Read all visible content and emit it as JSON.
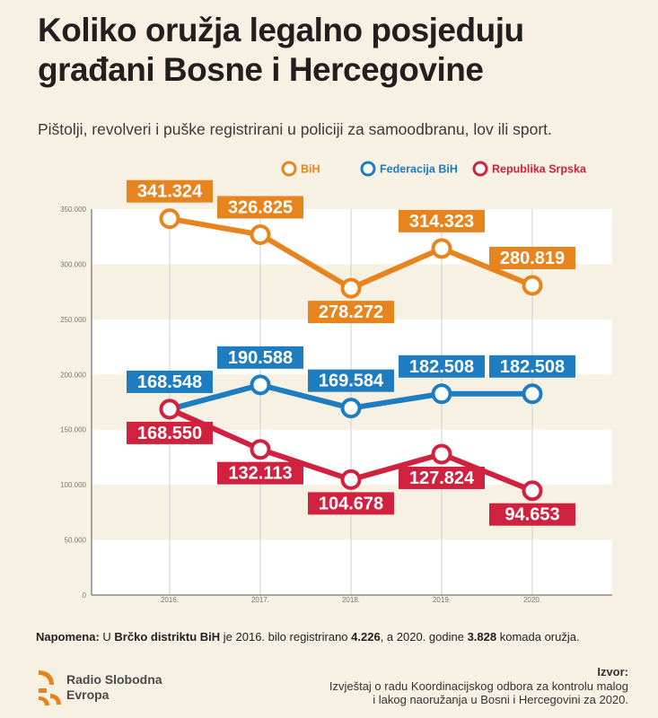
{
  "title_line1": "Koliko oružja legalno posjeduju",
  "title_line2": "građani Bosne i Hercegovine",
  "subtitle": "Pištolji, revolveri i puške registrirani u policiji za samoodbranu, lov ili sport.",
  "colors": {
    "background": "#f6f1e2",
    "band": "#ffffff",
    "bih": "#e8841e",
    "federacija": "#1e7dc1",
    "republika_srpska": "#d0223f"
  },
  "note": {
    "label": "Napomena:",
    "text1": " U ",
    "bold1": "Brčko distriktu BiH",
    "text2": " je 2016. bilo registrirano ",
    "bold2": "4.226",
    "text3": ", a 2020. godine ",
    "bold3": "3.828",
    "text4": " komada oružja."
  },
  "logo": {
    "line1": "Radio Slobodna",
    "line2": "Evropa"
  },
  "source": {
    "label": "Izvor:",
    "line1": "Izvještaj o radu Koordinacijskog odbora za kontrolu malog",
    "line2": "i lakog naoružanja u Bosni i Hercegovini za 2020."
  },
  "chart_data": {
    "type": "line",
    "x": [
      "2016.",
      "2017.",
      "2018.",
      "2019.",
      "2020."
    ],
    "ylim": [
      0,
      350000
    ],
    "yticks": [
      0,
      50000,
      100000,
      150000,
      200000,
      250000,
      300000,
      350000
    ],
    "ytick_labels": [
      "0",
      "50.000",
      "100.000",
      "150.000",
      "200.000",
      "250.000",
      "300.000",
      "350.000"
    ],
    "legend_position": "top-right",
    "series": [
      {
        "name": "BiH",
        "color": "#e8841e",
        "values": [
          341324,
          326825,
          278272,
          314323,
          280819
        ],
        "labels": [
          "341.324",
          "326.825",
          "278.272",
          "314.323",
          "280.819"
        ],
        "label_pos": [
          "above",
          "above",
          "below",
          "above",
          "above"
        ]
      },
      {
        "name": "Federacija BiH",
        "color": "#1e7dc1",
        "values": [
          168548,
          190588,
          169584,
          182508,
          182508
        ],
        "labels": [
          "168.548",
          "190.588",
          "169.584",
          "182.508",
          "182.508"
        ],
        "label_pos": [
          "above",
          "above",
          "above",
          "above",
          "above"
        ]
      },
      {
        "name": "Republika Srpska",
        "color": "#d0223f",
        "values": [
          168550,
          132113,
          104678,
          127824,
          94653
        ],
        "labels": [
          "168.550",
          "132.113",
          "104.678",
          "127.824",
          "94.653"
        ],
        "label_pos": [
          "below",
          "below",
          "below",
          "below",
          "below"
        ]
      }
    ]
  }
}
